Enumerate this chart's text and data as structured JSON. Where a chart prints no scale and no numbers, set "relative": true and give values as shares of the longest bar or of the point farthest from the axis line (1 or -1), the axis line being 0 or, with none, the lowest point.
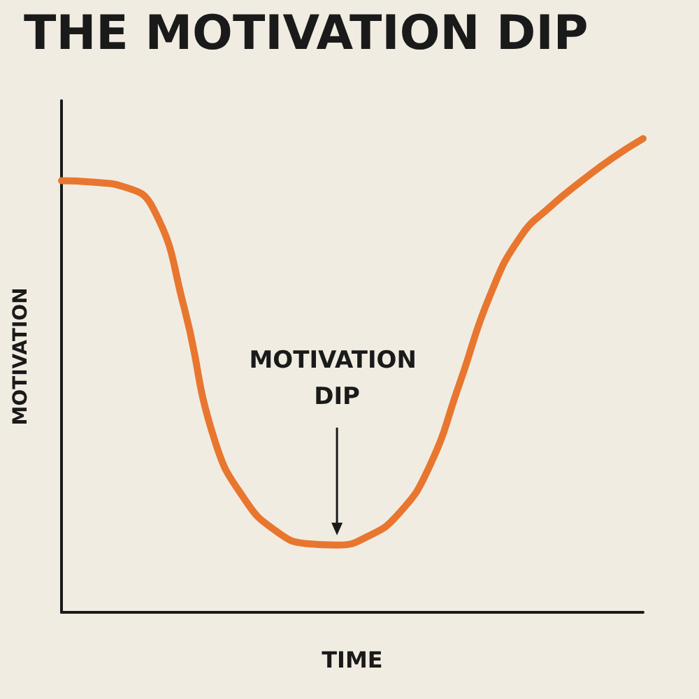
{
  "chart_data": {
    "type": "line",
    "title": "THE MOTIVATION DIP",
    "xlabel": "TIME",
    "ylabel": "MOTIVATION",
    "relative": true,
    "categories": [
      null,
      null,
      null,
      null,
      null,
      null,
      null,
      null,
      null,
      null,
      null,
      null,
      null,
      null,
      null,
      null,
      null,
      null,
      null,
      null
    ],
    "series": [
      {
        "color": "#e8762f",
        "values": [
          0.911,
          0.908,
          0.899,
          0.852,
          0.645,
          0.364,
          0.237,
          0.172,
          0.145,
          0.142,
          0.16,
          0.207,
          0.305,
          0.482,
          0.669,
          0.793,
          0.858,
          0.911,
          0.959,
          1
        ]
      }
    ],
    "annotations": [
      "MOTIVATION DIP"
    ],
    "marker": "none"
  }
}
